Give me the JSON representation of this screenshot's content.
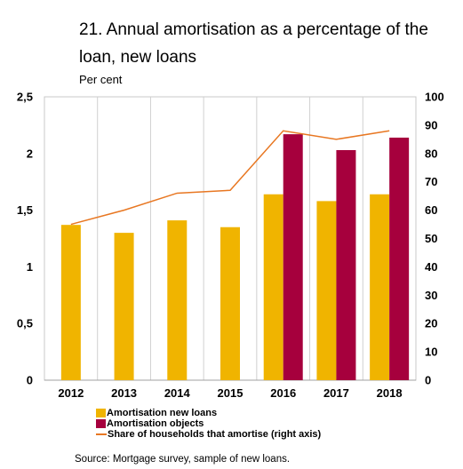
{
  "chart_data": {
    "type": "bar",
    "title": "21. Annual amortisation as a percentage of the loan, new loans",
    "unit_label": "Per cent",
    "categories": [
      "2012",
      "2013",
      "2014",
      "2015",
      "2016",
      "2017",
      "2018"
    ],
    "left_axis": {
      "min": 0,
      "max": 2.5,
      "ticks": [
        "0",
        "0,5",
        "1",
        "1,5",
        "2",
        "2,5"
      ]
    },
    "right_axis": {
      "min": 0,
      "max": 100,
      "ticks": [
        "0",
        "10",
        "20",
        "30",
        "40",
        "50",
        "60",
        "70",
        "80",
        "90",
        "100"
      ]
    },
    "series": [
      {
        "name": "Amortisation new loans",
        "type": "bar",
        "axis": "left",
        "color": "#F0B400",
        "values": [
          1.37,
          1.3,
          1.41,
          1.35,
          1.64,
          1.58,
          1.64
        ]
      },
      {
        "name": "Amortisation objects",
        "type": "bar",
        "axis": "left",
        "color": "#A6003D",
        "values": [
          null,
          null,
          null,
          null,
          2.17,
          2.03,
          2.14
        ]
      },
      {
        "name": "Share of households that amortise (right axis)",
        "type": "line",
        "axis": "right",
        "color": "#E87722",
        "values": [
          55,
          60,
          66,
          67,
          88,
          85,
          88
        ]
      }
    ],
    "grid": true,
    "legend_placement": "bottom"
  },
  "source": "Source: Mortgage survey, sample of new loans."
}
